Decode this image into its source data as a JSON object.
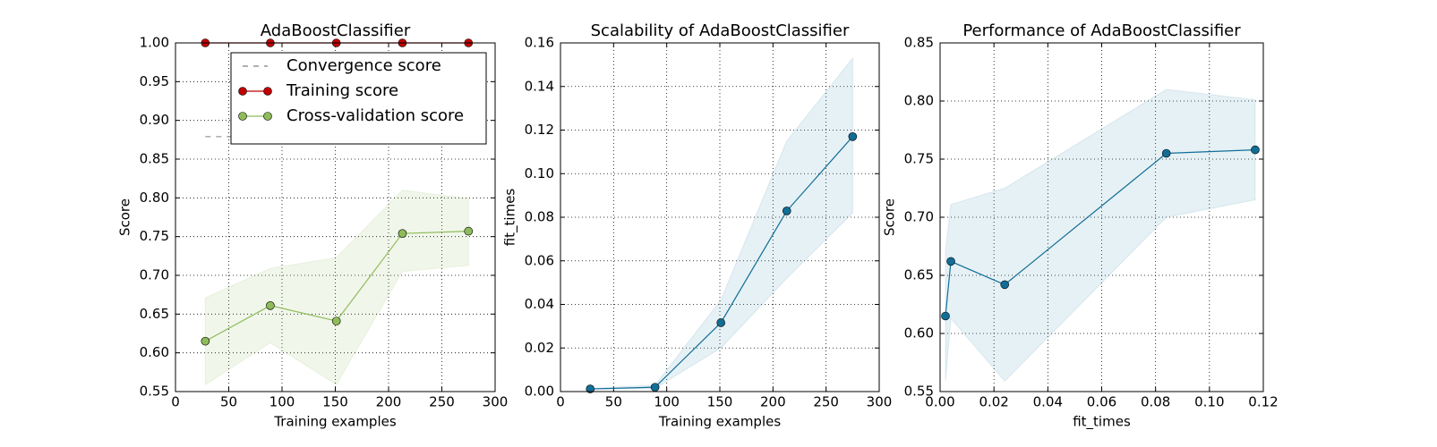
{
  "chart_data": [
    {
      "type": "line",
      "title": "AdaBoostClassifier",
      "xlabel": "Training examples",
      "ylabel": "Score",
      "x": [
        28,
        89,
        151,
        213,
        275
      ],
      "series": [
        {
          "name": "Convergence score",
          "color": "#808080",
          "linestyle": "--",
          "values": [
            0.879,
            0.879,
            0.879,
            0.879,
            0.879
          ]
        },
        {
          "name": "Training score",
          "color": "#c00000",
          "linestyle": "-",
          "marker": "o",
          "values": [
            1,
            1,
            1,
            1,
            1
          ]
        },
        {
          "name": "Cross-validation score",
          "color": "#8fbc5a",
          "linestyle": "-",
          "marker": "o",
          "band_color": "#8fbc5a",
          "values": [
            0.615,
            0.661,
            0.641,
            0.754,
            0.757
          ],
          "lower": [
            0.559,
            0.613,
            0.559,
            0.705,
            0.713
          ],
          "upper": [
            0.671,
            0.709,
            0.723,
            0.81,
            0.799
          ]
        }
      ],
      "xlim": [
        0,
        300
      ],
      "xticks": [
        0,
        50,
        100,
        150,
        200,
        250,
        300
      ],
      "ylim": [
        0.55,
        1
      ],
      "yticks": [
        0.55,
        {
          "value": 0.6,
          "label": "0.60"
        },
        0.65,
        {
          "value": 0.7,
          "label": "0.70"
        },
        0.75,
        {
          "value": 0.8,
          "label": "0.80"
        },
        0.85,
        {
          "value": 0.9,
          "label": "0.90"
        },
        0.95,
        {
          "value": 1,
          "label": "1.00"
        }
      ],
      "grid": true,
      "legend": "upper right"
    },
    {
      "type": "line",
      "title": "Scalability of AdaBoostClassifier",
      "xlabel": "Training examples",
      "ylabel": "fit_times",
      "x": [
        28,
        89,
        151,
        213,
        275
      ],
      "series": [
        {
          "color": "#126e96",
          "linestyle": "-",
          "marker": "o",
          "band_color": "#3a8fb0",
          "values": [
            0.0012,
            0.002,
            0.0316,
            0.0829,
            0.117
          ],
          "lower": [
            0.001,
            0.0015,
            0.02,
            0.052,
            0.082
          ],
          "upper": [
            0.0015,
            0.003,
            0.042,
            0.115,
            0.153
          ]
        }
      ],
      "xlim": [
        0,
        300
      ],
      "xticks": [
        0,
        50,
        100,
        150,
        200,
        250,
        300
      ],
      "ylim": [
        0,
        0.16
      ],
      "yticks": [
        {
          "value": 0,
          "label": "0.00"
        },
        0.02,
        0.04,
        0.06,
        0.08,
        {
          "value": 0.1,
          "label": "0.10"
        },
        0.12,
        0.14,
        0.16
      ],
      "grid": true
    },
    {
      "type": "line",
      "title": "Performance of AdaBoostClassifier",
      "xlabel": "fit_times",
      "ylabel": "Score",
      "x": [
        0.002,
        0.004,
        0.024,
        0.084,
        0.117
      ],
      "series": [
        {
          "color": "#126e96",
          "linestyle": "-",
          "marker": "o",
          "band_color": "#3a8fb0",
          "values": [
            0.615,
            0.662,
            0.642,
            0.755,
            0.758
          ],
          "lower": [
            0.559,
            0.613,
            0.559,
            0.7,
            0.715
          ],
          "upper": [
            0.671,
            0.711,
            0.725,
            0.81,
            0.801
          ]
        }
      ],
      "xlim": [
        0,
        0.12
      ],
      "xticks": [
        {
          "value": 0,
          "label": "0.00"
        },
        0.02,
        0.04,
        0.06,
        0.08,
        {
          "value": 0.1,
          "label": "0.10"
        },
        0.12
      ],
      "ylim": [
        0.55,
        0.85
      ],
      "yticks": [
        0.55,
        {
          "value": 0.6,
          "label": "0.60"
        },
        0.65,
        {
          "value": 0.7,
          "label": "0.70"
        },
        0.75,
        {
          "value": 0.8,
          "label": "0.80"
        },
        0.85
      ],
      "grid": true
    }
  ]
}
